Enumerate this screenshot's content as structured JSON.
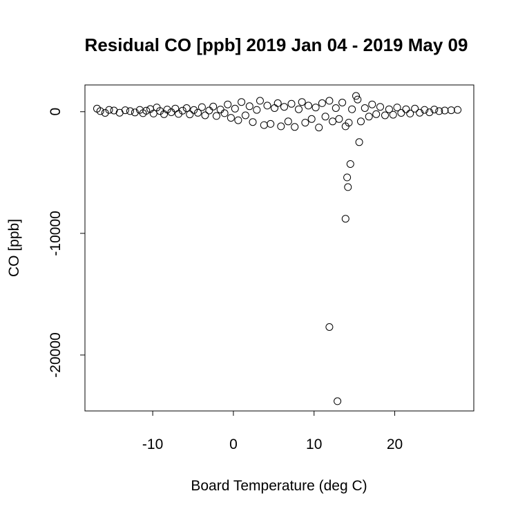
{
  "chart_data": {
    "type": "scatter",
    "title": "Residual CO [ppb] 2019 Jan 04 - 2019 May 09",
    "xlabel": "Board Temperature (deg C)",
    "ylabel": "CO [ppb]",
    "xlim": [
      -18.4,
      29.8
    ],
    "ylim": [
      -24600,
      2200
    ],
    "x_ticks": [
      -10,
      0,
      10,
      20
    ],
    "x_tick_labels": [
      "-10",
      "0",
      "10",
      "20"
    ],
    "y_ticks": [
      -20000,
      -10000,
      0
    ],
    "y_tick_labels": [
      "-20000",
      "-10000",
      "0"
    ],
    "grid": false,
    "legend": "none",
    "marker": "open-circle",
    "series": [
      {
        "points": [
          [
            -16.9,
            250
          ],
          [
            -16.5,
            50
          ],
          [
            -15.9,
            -100
          ],
          [
            -15.4,
            150
          ],
          [
            -14.8,
            100
          ],
          [
            -14.1,
            -80
          ],
          [
            -13.4,
            120
          ],
          [
            -12.8,
            50
          ],
          [
            -12.2,
            -60
          ],
          [
            -11.6,
            150
          ],
          [
            -11.2,
            -120
          ],
          [
            -10.8,
            80
          ],
          [
            -10.3,
            220
          ],
          [
            -9.9,
            -150
          ],
          [
            -9.5,
            350
          ],
          [
            -9.1,
            60
          ],
          [
            -8.6,
            -200
          ],
          [
            -8.2,
            180
          ],
          [
            -7.7,
            -40
          ],
          [
            -7.2,
            260
          ],
          [
            -6.8,
            -180
          ],
          [
            -6.3,
            90
          ],
          [
            -5.8,
            300
          ],
          [
            -5.4,
            -220
          ],
          [
            -4.9,
            140
          ],
          [
            -4.4,
            -90
          ],
          [
            -3.9,
            380
          ],
          [
            -3.5,
            -300
          ],
          [
            -3.0,
            100
          ],
          [
            -2.5,
            420
          ],
          [
            -2.1,
            -350
          ],
          [
            -1.6,
            180
          ],
          [
            -1.1,
            -120
          ],
          [
            -0.7,
            600
          ],
          [
            -0.3,
            -500
          ],
          [
            0.2,
            250
          ],
          [
            0.6,
            -700
          ],
          [
            1.0,
            800
          ],
          [
            1.5,
            -300
          ],
          [
            2.0,
            450
          ],
          [
            2.4,
            -850
          ],
          [
            2.9,
            150
          ],
          [
            3.3,
            900
          ],
          [
            3.8,
            -1100
          ],
          [
            4.2,
            500
          ],
          [
            4.6,
            -1000
          ],
          [
            5.1,
            300
          ],
          [
            5.5,
            700
          ],
          [
            5.9,
            -1200
          ],
          [
            6.3,
            400
          ],
          [
            6.8,
            -800
          ],
          [
            7.2,
            650
          ],
          [
            7.6,
            -1250
          ],
          [
            8.1,
            200
          ],
          [
            8.5,
            800
          ],
          [
            8.9,
            -900
          ],
          [
            9.3,
            500
          ],
          [
            9.7,
            -600
          ],
          [
            10.2,
            350
          ],
          [
            10.6,
            -1300
          ],
          [
            11.0,
            700
          ],
          [
            11.4,
            -400
          ],
          [
            11.9,
            900
          ],
          [
            12.3,
            -800
          ],
          [
            12.7,
            300
          ],
          [
            13.1,
            -600
          ],
          [
            13.5,
            750
          ],
          [
            13.9,
            -1200
          ],
          [
            14.3,
            -900
          ],
          [
            14.7,
            200
          ],
          [
            15.2,
            1300
          ],
          [
            15.4,
            1000
          ],
          [
            15.8,
            -800
          ],
          [
            16.3,
            300
          ],
          [
            16.8,
            -400
          ],
          [
            17.2,
            600
          ],
          [
            17.7,
            -200
          ],
          [
            18.2,
            400
          ],
          [
            18.8,
            -300
          ],
          [
            19.3,
            200
          ],
          [
            19.8,
            -250
          ],
          [
            20.3,
            350
          ],
          [
            20.8,
            -100
          ],
          [
            21.4,
            200
          ],
          [
            21.9,
            -150
          ],
          [
            22.5,
            250
          ],
          [
            23.1,
            -80
          ],
          [
            23.7,
            150
          ],
          [
            24.3,
            -50
          ],
          [
            24.9,
            180
          ],
          [
            25.5,
            50
          ],
          [
            26.2,
            100
          ],
          [
            27.0,
            120
          ],
          [
            27.8,
            150
          ],
          [
            15.6,
            -2500
          ],
          [
            14.5,
            -4300
          ],
          [
            14.1,
            -5400
          ],
          [
            14.2,
            -6200
          ],
          [
            13.9,
            -8800
          ],
          [
            11.9,
            -17700
          ],
          [
            12.9,
            -23800
          ]
        ]
      }
    ]
  }
}
